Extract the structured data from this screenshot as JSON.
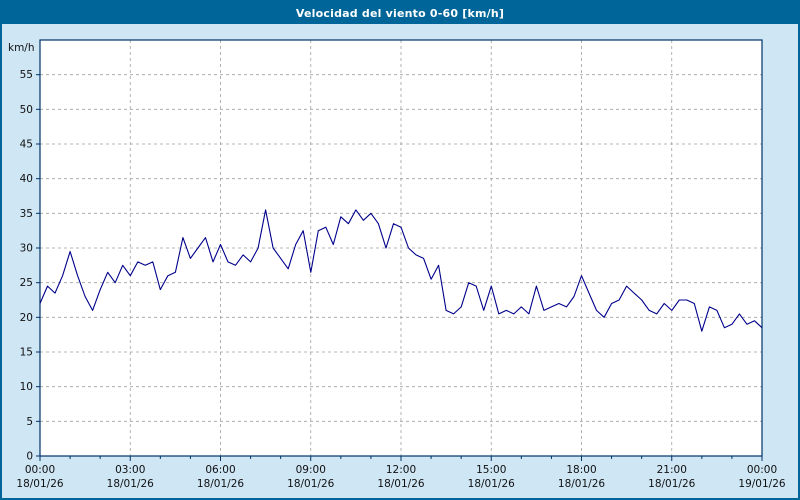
{
  "title_bar": {
    "title": "Velocidad del viento 0-60 [km/h]"
  },
  "colors": {
    "header_bg": "#006699",
    "header_text": "#ffffff",
    "page_bg": "#cfe6f5",
    "plot_bg": "#ffffff",
    "line": "#00008b",
    "grid": "#a0a0a0",
    "axis": "#003366",
    "text": "#111111"
  },
  "chart_data": {
    "type": "line",
    "title": "Velocidad del viento 0-60 [km/h]",
    "xlabel": "",
    "ylabel": "km/h",
    "ylim": [
      0,
      60
    ],
    "ytick_step": 5,
    "x_hours_range": [
      0,
      24
    ],
    "grid": "dashed",
    "legend": "none",
    "xticks": [
      {
        "hour": 0,
        "time": "00:00",
        "date": "18/01/26"
      },
      {
        "hour": 3,
        "time": "03:00",
        "date": "18/01/26"
      },
      {
        "hour": 6,
        "time": "06:00",
        "date": "18/01/26"
      },
      {
        "hour": 9,
        "time": "09:00",
        "date": "18/01/26"
      },
      {
        "hour": 12,
        "time": "12:00",
        "date": "18/01/26"
      },
      {
        "hour": 15,
        "time": "15:00",
        "date": "18/01/26"
      },
      {
        "hour": 18,
        "time": "18:00",
        "date": "18/01/26"
      },
      {
        "hour": 21,
        "time": "21:00",
        "date": "18/01/26"
      },
      {
        "hour": 24,
        "time": "00:00",
        "date": "19/01/26"
      }
    ],
    "series": [
      {
        "name": "Velocidad del viento (km/h)",
        "x_start": 0,
        "x_step": 0.25,
        "values": [
          22,
          24.5,
          23.5,
          26,
          29.5,
          26,
          23,
          21,
          24,
          26.5,
          25,
          27.5,
          26,
          28,
          27.5,
          28,
          24,
          26,
          26.5,
          31.5,
          28.5,
          30,
          31.5,
          28,
          30.5,
          28,
          27.5,
          29,
          28,
          30,
          35.5,
          30,
          28.5,
          27,
          30.5,
          32.5,
          26.5,
          32.5,
          33,
          30.5,
          34.5,
          33.5,
          35.5,
          34,
          35,
          33.5,
          30,
          33.5,
          33,
          30,
          29,
          28.5,
          25.5,
          27.5,
          21,
          20.5,
          21.5,
          25,
          24.5,
          21,
          24.5,
          20.5,
          21,
          20.5,
          21.5,
          20.5,
          24.5,
          21,
          21.5,
          22,
          21.5,
          23,
          26,
          23.5,
          21,
          20,
          22,
          22.5,
          24.5,
          23.5,
          22.5,
          21,
          20.5,
          22,
          21,
          22.5,
          22.5,
          22,
          18,
          21.5,
          21,
          18.5,
          19,
          20.5,
          19,
          19.5,
          18.5
        ]
      }
    ]
  }
}
